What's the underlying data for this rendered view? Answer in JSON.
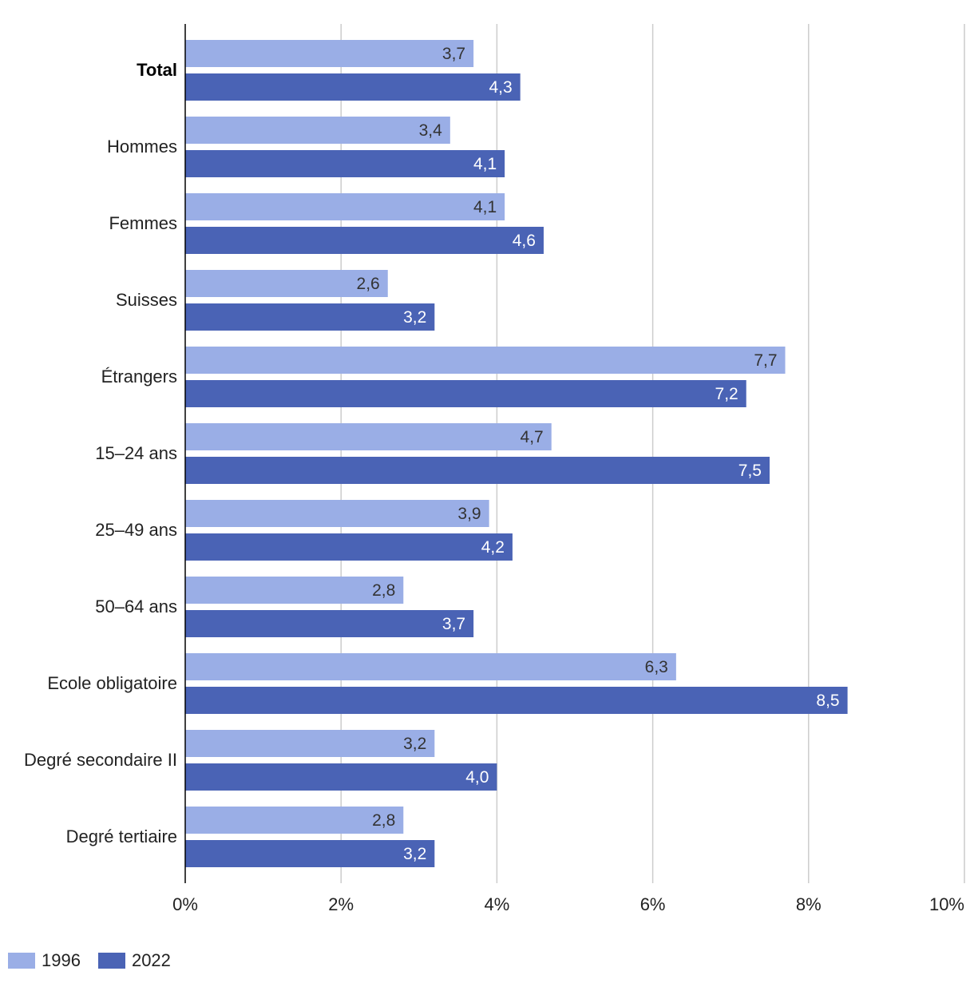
{
  "chart_data": {
    "type": "bar",
    "orientation": "horizontal",
    "categories": [
      "Total",
      "Hommes",
      "Femmes",
      "Suisses",
      "Étrangers",
      "15–24 ans",
      "25–49 ans",
      "50–64 ans",
      "Ecole obligatoire",
      "Degré secondaire II",
      "Degré tertiaire"
    ],
    "bold_categories": [
      "Total"
    ],
    "series": [
      {
        "name": "1996",
        "color": "#9aaee6",
        "label_color": "#333333",
        "values": [
          3.7,
          3.4,
          4.1,
          2.6,
          7.7,
          4.7,
          3.9,
          2.8,
          6.3,
          3.2,
          2.8
        ],
        "labels": [
          "3,7",
          "3,4",
          "4,1",
          "2,6",
          "7,7",
          "4,7",
          "3,9",
          "2,8",
          "6,3",
          "3,2",
          "2,8"
        ]
      },
      {
        "name": "2022",
        "color": "#4a63b5",
        "label_color": "#ffffff",
        "values": [
          4.3,
          4.1,
          4.6,
          3.2,
          7.2,
          7.5,
          4.2,
          3.7,
          8.5,
          4.0,
          3.2
        ],
        "labels": [
          "4,3",
          "4,1",
          "4,6",
          "3,2",
          "7,2",
          "7,5",
          "4,2",
          "3,7",
          "8,5",
          "4,0",
          "3,2"
        ]
      }
    ],
    "xlim": [
      0,
      10
    ],
    "xticks": [
      0,
      2,
      4,
      6,
      8,
      10
    ],
    "xtick_labels": [
      "0%",
      "2%",
      "4%",
      "6%",
      "8%",
      "10%"
    ],
    "grid": true,
    "legend_position": "bottom-left",
    "title": "",
    "xlabel": "",
    "ylabel": ""
  }
}
